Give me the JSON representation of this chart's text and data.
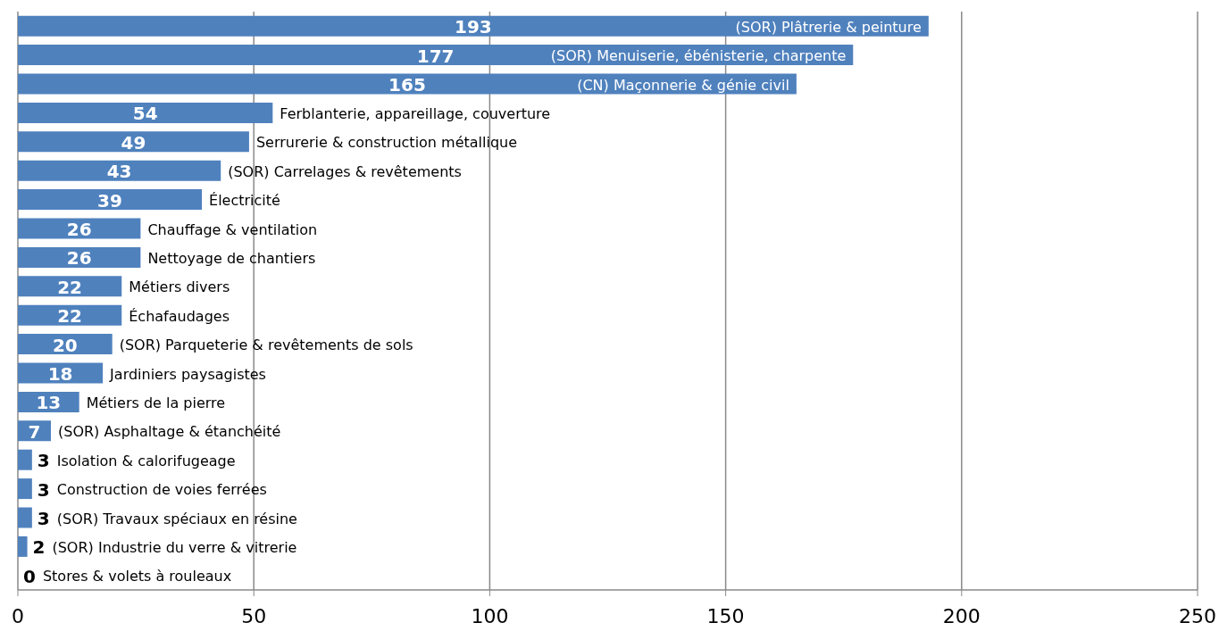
{
  "chart_data": {
    "type": "bar",
    "orientation": "horizontal",
    "categories": [
      "(SOR) Plâtrerie & peinture",
      "(SOR) Menuiserie, ébénisterie, charpente",
      "(CN) Maçonnerie & génie civil",
      "Ferblanterie, appareillage, couverture",
      "Serrurerie & construction métallique",
      "(SOR) Carrelages & revêtements",
      "Électricité",
      "Chauffage & ventilation",
      "Nettoyage de chantiers",
      "Métiers divers",
      "Échafaudages",
      "(SOR) Parqueterie & revêtements de sols",
      "Jardiniers paysagistes",
      "Métiers de la pierre",
      "(SOR) Asphaltage & étanchéité",
      "Isolation & calorifugeage",
      "Construction de voies ferrées",
      "(SOR) Travaux spéciaux en résine",
      "(SOR) Industrie du verre & vitrerie",
      "Stores & volets à rouleaux"
    ],
    "values": [
      193,
      177,
      165,
      54,
      49,
      43,
      39,
      26,
      26,
      22,
      22,
      20,
      18,
      13,
      7,
      3,
      3,
      3,
      2,
      0
    ],
    "color": "#4f81bd",
    "xlim": [
      0,
      250
    ],
    "xticks": [
      0,
      50,
      100,
      150,
      200,
      250
    ],
    "grid": "x",
    "data_labels": true
  }
}
